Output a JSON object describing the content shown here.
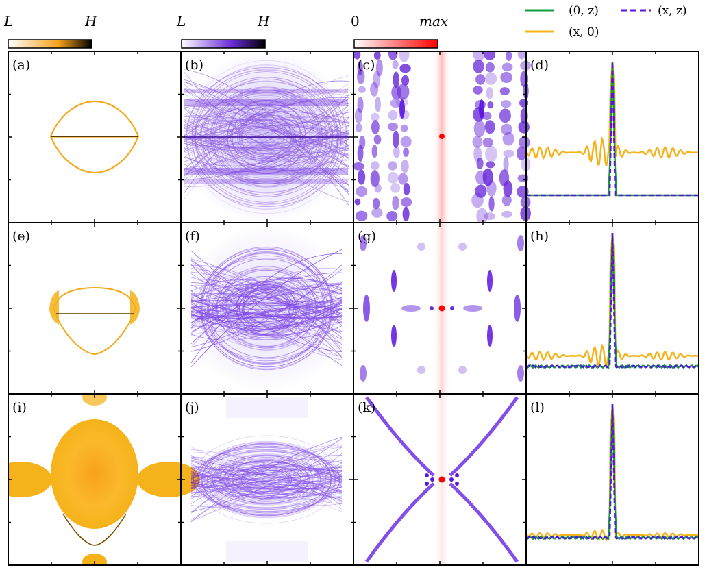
{
  "colorbars": [
    {
      "low": "L",
      "high": "H",
      "stops": [
        "#ffffff",
        "#f7a21b",
        "#000000"
      ]
    },
    {
      "low": "L",
      "high": "H",
      "stops": [
        "#ffffff",
        "#6a2bd9",
        "#000000"
      ]
    },
    {
      "low": "0",
      "high": "max",
      "stops": [
        "#ffffff",
        "#ff0000"
      ]
    }
  ],
  "panel_labels": [
    "(a)",
    "(b)",
    "(c)",
    "(d)",
    "(e)",
    "(f)",
    "(g)",
    "(h)",
    "(i)",
    "(j)",
    "(k)",
    "(l)"
  ],
  "colors": {
    "orange": "#f5b21a",
    "purple": "#5a14e0",
    "green": "#0f9e3c",
    "red": "#ff0000"
  },
  "legend": {
    "items": [
      {
        "label": "(0, z)",
        "color": "#0f9e3c",
        "style": "solid"
      },
      {
        "label": "(x, 0)",
        "color": "#f5b21a",
        "style": "solid"
      },
      {
        "label": "(x, z)",
        "color": "#5a14e0",
        "style": "dashed"
      }
    ]
  },
  "chart_data": {
    "type": "line",
    "title": "",
    "xlabel": "",
    "ylabel": "",
    "legend": [
      "(0, z)",
      "(x, 0)",
      "(x, z)"
    ],
    "rows": [
      {
        "panel": "(d)",
        "peak_height": 1.0,
        "baseline_02": 0.0,
        "baseline_x0": 0.32,
        "peak_position": 0.0
      },
      {
        "panel": "(h)",
        "peak_height": 1.0,
        "baseline_02": 0.0,
        "baseline_x0": 0.08,
        "peak_position": 0.0
      },
      {
        "panel": "(l)",
        "peak_height": 1.0,
        "baseline_02": 0.0,
        "baseline_x0": 0.02,
        "peak_position": 0.0
      }
    ]
  }
}
